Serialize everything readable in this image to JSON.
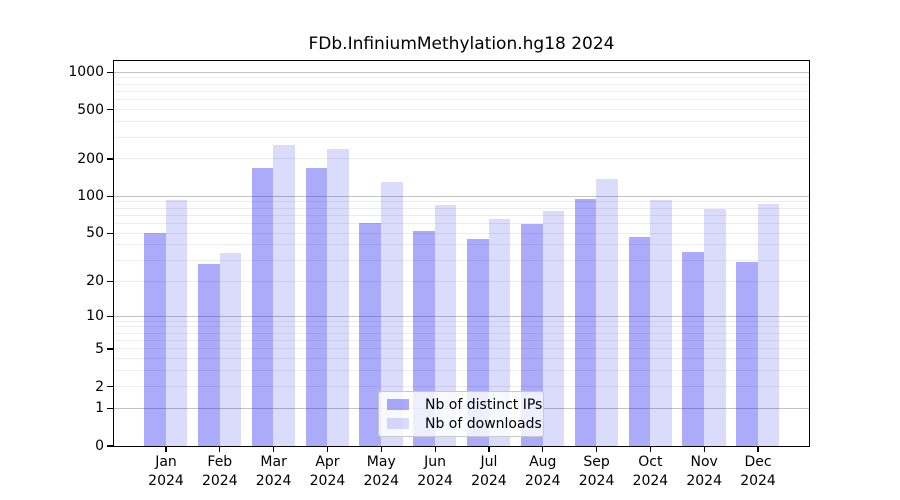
{
  "chart_data": {
    "type": "bar",
    "title": "FDb.InfiniumMethylation.hg18 2024",
    "categories": [
      "Jan",
      "Feb",
      "Mar",
      "Apr",
      "May",
      "Jun",
      "Jul",
      "Aug",
      "Sep",
      "Oct",
      "Nov",
      "Dec"
    ],
    "category_sublabel": "2024",
    "series": [
      {
        "name": "Nb of distinct IPs",
        "color": "rgba(34,34,238,0.38)",
        "values": [
          50,
          28,
          168,
          170,
          61,
          52,
          45,
          59,
          94,
          46,
          35,
          29
        ]
      },
      {
        "name": "Nb of downloads",
        "color": "rgba(34,34,238,0.16)",
        "values": [
          93,
          34,
          258,
          239,
          130,
          85,
          65,
          76,
          138,
          93,
          78,
          87
        ]
      }
    ],
    "y_ticks": [
      0,
      1,
      2,
      5,
      10,
      20,
      50,
      100,
      200,
      500,
      1000
    ],
    "scale": "log1p",
    "ylim": [
      0,
      1230
    ],
    "grid": true,
    "legend_position": "lower center"
  },
  "colors": {
    "background": "#ffffff",
    "axis": "#000000",
    "major_grid": "#c3c3c3",
    "minor_grid": "#ececec",
    "legend_border": "#c8c8c8"
  }
}
